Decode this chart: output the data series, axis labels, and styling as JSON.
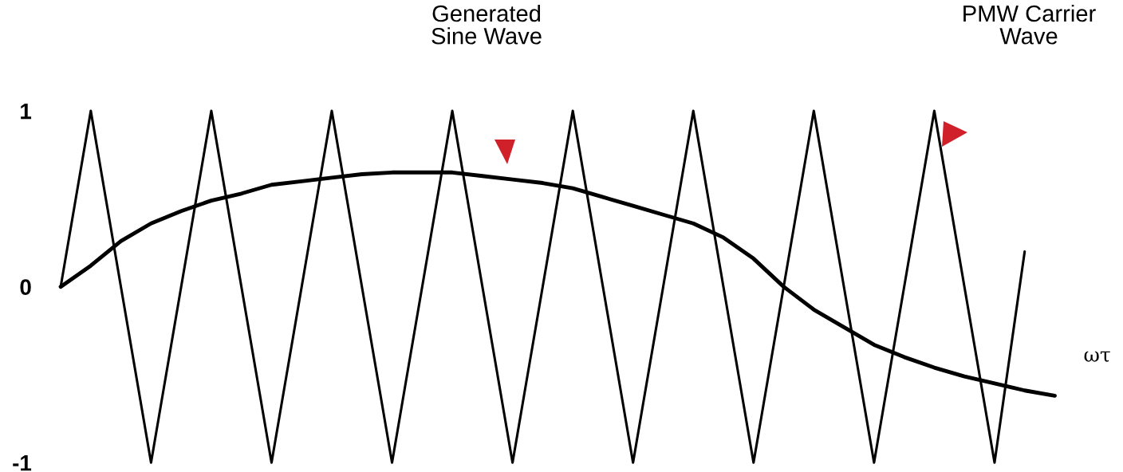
{
  "chart_data": {
    "type": "line",
    "xlabel": "ωτ",
    "categories": [
      null,
      null,
      null,
      null,
      null,
      null,
      null,
      null,
      null,
      null,
      null,
      null,
      null,
      null,
      null,
      null,
      null,
      null,
      null,
      null,
      null,
      null,
      null,
      null,
      null,
      null,
      null,
      null,
      null,
      null,
      null,
      null,
      null,
      null
    ],
    "ylim": [
      -1,
      1
    ],
    "yticks": [
      -1,
      0,
      1
    ],
    "tick_labels": "y",
    "grid": false,
    "marker": "none",
    "line_style": "solid",
    "series": [
      {
        "color": "#000000",
        "values": [
          0,
          1,
          0,
          -1,
          0,
          1,
          0,
          -1,
          0,
          1,
          0,
          -1,
          0,
          1,
          0,
          -1,
          0,
          1,
          0,
          -1,
          0,
          1,
          0,
          -1,
          0,
          1,
          0,
          -1,
          0,
          1,
          0,
          -1,
          0.2,
          null
        ]
      },
      {
        "color": "#000000",
        "values": [
          0,
          0.12,
          0.26,
          0.36,
          0.43,
          0.49,
          0.53,
          0.58,
          0.6,
          0.62,
          0.64,
          0.65,
          0.65,
          0.65,
          0.63,
          0.61,
          0.59,
          0.56,
          0.51,
          0.46,
          0.41,
          0.36,
          0.28,
          0.16,
          0.0,
          -0.13,
          -0.23,
          -0.33,
          -0.4,
          -0.46,
          -0.51,
          -0.55,
          -0.59,
          -0.62
        ]
      }
    ],
    "annotations": [
      "Generated\nSine Wave",
      "PMW Carrier\nWave"
    ]
  }
}
